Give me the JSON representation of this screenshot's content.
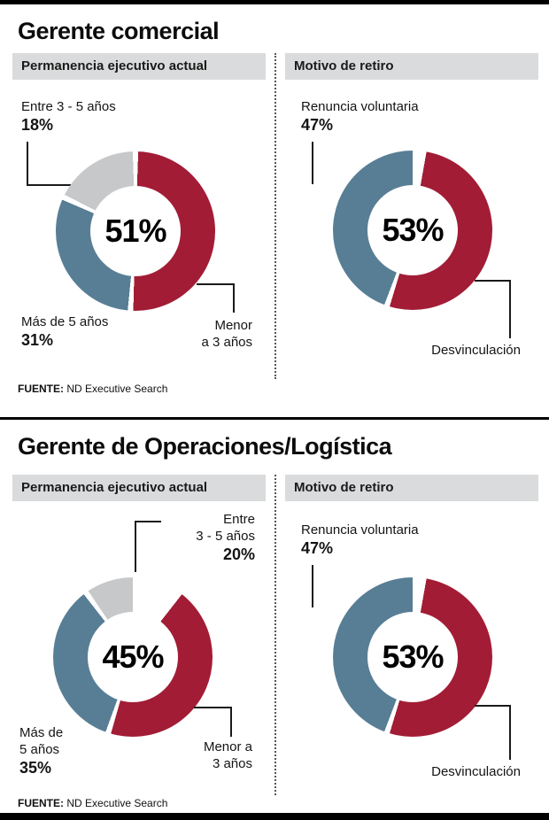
{
  "colors": {
    "red": "#A21C35",
    "blue": "#587E95",
    "gray": "#C7C8CA",
    "header_bg": "#DADBDC"
  },
  "sections": [
    {
      "title": "Gerente comercial",
      "perm_header": "Permanencia ejecutivo actual",
      "motivo_header": "Motivo de retiro",
      "fuente_label": "FUENTE:",
      "fuente_value": "ND Executive Search",
      "perm_labels": {
        "gray_name": "Entre 3 - 5 años",
        "gray_pct": "18%",
        "blue_name": "Más de 5 años",
        "blue_pct": "31%",
        "red_line1": "Menor",
        "red_line2": "a 3 años"
      },
      "motivo_labels": {
        "blue_name": "Renuncia voluntaria",
        "blue_pct": "47%",
        "red_name": "Desvinculación"
      }
    },
    {
      "title": "Gerente de Operaciones/Logística",
      "perm_header": "Permanencia ejecutivo actual",
      "motivo_header": "Motivo de retiro",
      "fuente_label": "FUENTE:",
      "fuente_value": "ND Executive Search",
      "perm_labels": {
        "gray_line1": "Entre",
        "gray_line2": "3 - 5 años",
        "gray_pct": "20%",
        "blue_line1": "Más de",
        "blue_line2": "5 años",
        "blue_pct": "35%",
        "red_line1": "Menor a",
        "red_line2": "3 años"
      },
      "motivo_labels": {
        "blue_name": "Renuncia voluntaria",
        "blue_pct": "47%",
        "red_name": "Desvinculación"
      }
    }
  ],
  "chart_data": [
    {
      "type": "pie",
      "title": "Gerente comercial - Permanencia ejecutivo actual",
      "labels": [
        "Menor a 3 años",
        "Más de 5 años",
        "Entre 3 - 5 años"
      ],
      "values": [
        51,
        31,
        18
      ],
      "colors": [
        "#A21C35",
        "#587E95",
        "#C7C8CA"
      ],
      "center_label": "51%",
      "start_angle": 0,
      "gap_deg": 4
    },
    {
      "type": "pie",
      "title": "Gerente comercial - Motivo de retiro",
      "labels": [
        "Desvinculación",
        "Renuncia voluntaria"
      ],
      "values": [
        53,
        47
      ],
      "colors": [
        "#A21C35",
        "#587E95"
      ],
      "center_label": "53%",
      "start_angle": 8,
      "gap_deg": 4
    },
    {
      "type": "pie",
      "title": "Gerente de Operaciones/Logística - Permanencia ejecutivo actual",
      "labels": [
        "Menor a 3 años",
        "Más de 5 años",
        "Entre 3 - 5 años"
      ],
      "values": [
        45,
        35,
        20
      ],
      "colors": [
        "#A21C35",
        "#587E95",
        "#C7C8CA"
      ],
      "center_label": "45%",
      "start_angle": 36,
      "gap_deg": 4
    },
    {
      "type": "pie",
      "title": "Gerente de Operaciones/Logística - Motivo de retiro",
      "labels": [
        "Desvinculación",
        "Renuncia voluntaria"
      ],
      "values": [
        53,
        47
      ],
      "colors": [
        "#A21C35",
        "#587E95"
      ],
      "center_label": "53%",
      "start_angle": 8,
      "gap_deg": 4
    }
  ]
}
